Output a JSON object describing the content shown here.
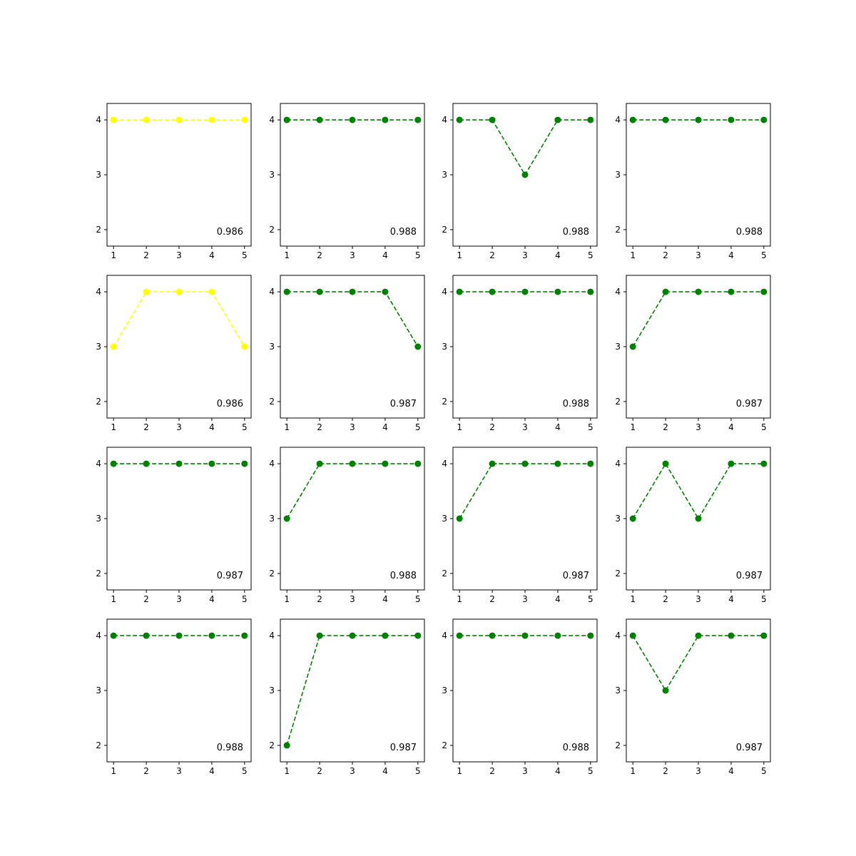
{
  "chart_data": [
    {
      "type": "line",
      "x": [
        1,
        2,
        3,
        4,
        5
      ],
      "values": [
        4,
        4,
        4,
        4,
        4
      ],
      "color": "#ffff00",
      "annotation": "0.986",
      "xticks": [
        "1",
        "2",
        "3",
        "4",
        "5"
      ],
      "yticks": [
        "2",
        "3",
        "4"
      ],
      "xlim": [
        0.8,
        5.2
      ],
      "ylim": [
        1.7,
        4.3
      ],
      "line_style": "dashed",
      "marker": "circle"
    },
    {
      "type": "line",
      "x": [
        1,
        2,
        3,
        4,
        5
      ],
      "values": [
        4,
        4,
        4,
        4,
        4
      ],
      "color": "#008000",
      "annotation": "0.988",
      "xticks": [
        "1",
        "2",
        "3",
        "4",
        "5"
      ],
      "yticks": [
        "2",
        "3",
        "4"
      ],
      "xlim": [
        0.8,
        5.2
      ],
      "ylim": [
        1.7,
        4.3
      ],
      "line_style": "dashed",
      "marker": "circle"
    },
    {
      "type": "line",
      "x": [
        1,
        2,
        3,
        4,
        5
      ],
      "values": [
        4,
        4,
        3,
        4,
        4
      ],
      "color": "#008000",
      "annotation": "0.988",
      "xticks": [
        "1",
        "2",
        "3",
        "4",
        "5"
      ],
      "yticks": [
        "2",
        "3",
        "4"
      ],
      "xlim": [
        0.8,
        5.2
      ],
      "ylim": [
        1.7,
        4.3
      ],
      "line_style": "dashed",
      "marker": "circle"
    },
    {
      "type": "line",
      "x": [
        1,
        2,
        3,
        4,
        5
      ],
      "values": [
        4,
        4,
        4,
        4,
        4
      ],
      "color": "#008000",
      "annotation": "0.988",
      "xticks": [
        "1",
        "2",
        "3",
        "4",
        "5"
      ],
      "yticks": [
        "2",
        "3",
        "4"
      ],
      "xlim": [
        0.8,
        5.2
      ],
      "ylim": [
        1.7,
        4.3
      ],
      "line_style": "dashed",
      "marker": "circle"
    },
    {
      "type": "line",
      "x": [
        1,
        2,
        3,
        4,
        5
      ],
      "values": [
        3,
        4,
        4,
        4,
        3
      ],
      "color": "#ffff00",
      "annotation": "0.986",
      "xticks": [
        "1",
        "2",
        "3",
        "4",
        "5"
      ],
      "yticks": [
        "2",
        "3",
        "4"
      ],
      "xlim": [
        0.8,
        5.2
      ],
      "ylim": [
        1.7,
        4.3
      ],
      "line_style": "dashed",
      "marker": "circle"
    },
    {
      "type": "line",
      "x": [
        1,
        2,
        3,
        4,
        5
      ],
      "values": [
        4,
        4,
        4,
        4,
        3
      ],
      "color": "#008000",
      "annotation": "0.987",
      "xticks": [
        "1",
        "2",
        "3",
        "4",
        "5"
      ],
      "yticks": [
        "2",
        "3",
        "4"
      ],
      "xlim": [
        0.8,
        5.2
      ],
      "ylim": [
        1.7,
        4.3
      ],
      "line_style": "dashed",
      "marker": "circle"
    },
    {
      "type": "line",
      "x": [
        1,
        2,
        3,
        4,
        5
      ],
      "values": [
        4,
        4,
        4,
        4,
        4
      ],
      "color": "#008000",
      "annotation": "0.988",
      "xticks": [
        "1",
        "2",
        "3",
        "4",
        "5"
      ],
      "yticks": [
        "2",
        "3",
        "4"
      ],
      "xlim": [
        0.8,
        5.2
      ],
      "ylim": [
        1.7,
        4.3
      ],
      "line_style": "dashed",
      "marker": "circle"
    },
    {
      "type": "line",
      "x": [
        1,
        2,
        3,
        4,
        5
      ],
      "values": [
        3,
        4,
        4,
        4,
        4
      ],
      "color": "#008000",
      "annotation": "0.987",
      "xticks": [
        "1",
        "2",
        "3",
        "4",
        "5"
      ],
      "yticks": [
        "2",
        "3",
        "4"
      ],
      "xlim": [
        0.8,
        5.2
      ],
      "ylim": [
        1.7,
        4.3
      ],
      "line_style": "dashed",
      "marker": "circle"
    },
    {
      "type": "line",
      "x": [
        1,
        2,
        3,
        4,
        5
      ],
      "values": [
        4,
        4,
        4,
        4,
        4
      ],
      "color": "#008000",
      "annotation": "0.987",
      "xticks": [
        "1",
        "2",
        "3",
        "4",
        "5"
      ],
      "yticks": [
        "2",
        "3",
        "4"
      ],
      "xlim": [
        0.8,
        5.2
      ],
      "ylim": [
        1.7,
        4.3
      ],
      "line_style": "dashed",
      "marker": "circle"
    },
    {
      "type": "line",
      "x": [
        1,
        2,
        3,
        4,
        5
      ],
      "values": [
        3,
        4,
        4,
        4,
        4
      ],
      "color": "#008000",
      "annotation": "0.988",
      "xticks": [
        "1",
        "2",
        "3",
        "4",
        "5"
      ],
      "yticks": [
        "2",
        "3",
        "4"
      ],
      "xlim": [
        0.8,
        5.2
      ],
      "ylim": [
        1.7,
        4.3
      ],
      "line_style": "dashed",
      "marker": "circle"
    },
    {
      "type": "line",
      "x": [
        1,
        2,
        3,
        4,
        5
      ],
      "values": [
        3,
        4,
        4,
        4,
        4
      ],
      "color": "#008000",
      "annotation": "0.987",
      "xticks": [
        "1",
        "2",
        "3",
        "4",
        "5"
      ],
      "yticks": [
        "2",
        "3",
        "4"
      ],
      "xlim": [
        0.8,
        5.2
      ],
      "ylim": [
        1.7,
        4.3
      ],
      "line_style": "dashed",
      "marker": "circle"
    },
    {
      "type": "line",
      "x": [
        1,
        2,
        3,
        4,
        5
      ],
      "values": [
        3,
        4,
        3,
        4,
        4
      ],
      "color": "#008000",
      "annotation": "0.987",
      "xticks": [
        "1",
        "2",
        "3",
        "4",
        "5"
      ],
      "yticks": [
        "2",
        "3",
        "4"
      ],
      "xlim": [
        0.8,
        5.2
      ],
      "ylim": [
        1.7,
        4.3
      ],
      "line_style": "dashed",
      "marker": "circle"
    },
    {
      "type": "line",
      "x": [
        1,
        2,
        3,
        4,
        5
      ],
      "values": [
        4,
        4,
        4,
        4,
        4
      ],
      "color": "#008000",
      "annotation": "0.988",
      "xticks": [
        "1",
        "2",
        "3",
        "4",
        "5"
      ],
      "yticks": [
        "2",
        "3",
        "4"
      ],
      "xlim": [
        0.8,
        5.2
      ],
      "ylim": [
        1.7,
        4.3
      ],
      "line_style": "dashed",
      "marker": "circle"
    },
    {
      "type": "line",
      "x": [
        1,
        2,
        3,
        4,
        5
      ],
      "values": [
        2,
        4,
        4,
        4,
        4
      ],
      "color": "#008000",
      "annotation": "0.987",
      "xticks": [
        "1",
        "2",
        "3",
        "4",
        "5"
      ],
      "yticks": [
        "2",
        "3",
        "4"
      ],
      "xlim": [
        0.8,
        5.2
      ],
      "ylim": [
        1.7,
        4.3
      ],
      "line_style": "dashed",
      "marker": "circle"
    },
    {
      "type": "line",
      "x": [
        1,
        2,
        3,
        4,
        5
      ],
      "values": [
        4,
        4,
        4,
        4,
        4
      ],
      "color": "#008000",
      "annotation": "0.988",
      "xticks": [
        "1",
        "2",
        "3",
        "4",
        "5"
      ],
      "yticks": [
        "2",
        "3",
        "4"
      ],
      "xlim": [
        0.8,
        5.2
      ],
      "ylim": [
        1.7,
        4.3
      ],
      "line_style": "dashed",
      "marker": "circle"
    },
    {
      "type": "line",
      "x": [
        1,
        2,
        3,
        4,
        5
      ],
      "values": [
        4,
        3,
        4,
        4,
        4
      ],
      "color": "#008000",
      "annotation": "0.987",
      "xticks": [
        "1",
        "2",
        "3",
        "4",
        "5"
      ],
      "yticks": [
        "2",
        "3",
        "4"
      ],
      "xlim": [
        0.8,
        5.2
      ],
      "ylim": [
        1.7,
        4.3
      ],
      "line_style": "dashed",
      "marker": "circle"
    }
  ]
}
